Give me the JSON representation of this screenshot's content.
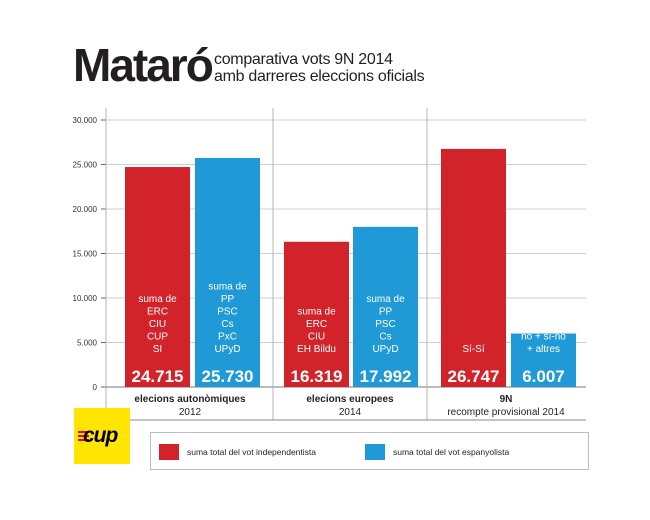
{
  "header": {
    "city": "Mataró",
    "subtitle_line1": "comparativa vots 9N 2014",
    "subtitle_line2": "amb darreres eleccions oficials"
  },
  "colors": {
    "independentista": "#d2232a",
    "espanyolista": "#1f9ad6",
    "grid": "#cfcfcf",
    "frame": "#b5b5b5"
  },
  "chart_data": {
    "type": "bar",
    "ylim": [
      0,
      30000
    ],
    "yticks": [
      0,
      5000,
      10000,
      15000,
      20000,
      25000,
      30000
    ],
    "ytick_labels": [
      "0",
      "5.000",
      "10.000",
      "15.000",
      "20.000",
      "25.000",
      "30.000"
    ],
    "groups": [
      {
        "label_bold": "elecions autonòmiques",
        "label_sub": "2012",
        "bars": [
          {
            "series": "suma total del vot independentista",
            "value": 24715,
            "value_label": "24.715",
            "parties": [
              "suma de",
              "ERC",
              "CIU",
              "CUP",
              "SI"
            ]
          },
          {
            "series": "suma total del vot espanyolista",
            "value": 25730,
            "value_label": "25.730",
            "parties": [
              "suma de",
              "PP",
              "PSC",
              "Cs",
              "PxC",
              "UPyD"
            ]
          }
        ]
      },
      {
        "label_bold": "elecions europees",
        "label_sub": "2014",
        "bars": [
          {
            "series": "suma total del vot independentista",
            "value": 16319,
            "value_label": "16.319",
            "parties": [
              "suma de",
              "ERC",
              "CIU",
              "EH Bildu"
            ]
          },
          {
            "series": "suma total del vot espanyolista",
            "value": 17992,
            "value_label": "17.992",
            "parties": [
              "suma de",
              "PP",
              "PSC",
              "Cs",
              "UPyD"
            ]
          }
        ]
      },
      {
        "label_bold": "9N",
        "label_sub": "recompte provisional 2014",
        "bars": [
          {
            "series": "suma total del vot independentista",
            "value": 26747,
            "value_label": "26.747",
            "parties": [
              "Sí-Sí"
            ]
          },
          {
            "series": "suma total del vot espanyolista",
            "value": 6007,
            "value_label": "6.007",
            "parties": [
              "no + sí-no",
              "+ altres"
            ]
          }
        ]
      }
    ],
    "legend": [
      {
        "label": "suma total del vot independentista",
        "color": "#d2232a"
      },
      {
        "label": "suma total del vot espanyolista",
        "color": "#1f9ad6"
      }
    ]
  },
  "logo": {
    "text": "cup"
  }
}
